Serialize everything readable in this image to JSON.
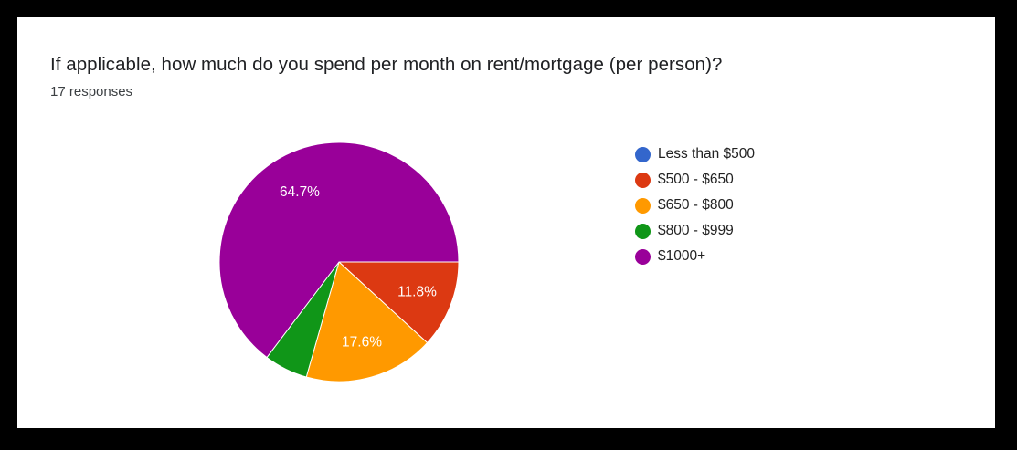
{
  "header": {
    "title": "If applicable, how much do you spend per month on rent/mortgage (per person)?",
    "subtitle": "17 responses"
  },
  "chart_data": {
    "type": "pie",
    "title": "If applicable, how much do you spend per month on rent/mortgage (per person)?",
    "subtitle": "17 responses",
    "categories": [
      "Less than $500",
      "$500 - $650",
      "$650 - $800",
      "$800 - $999",
      "$1000+"
    ],
    "values": [
      0,
      11.8,
      17.6,
      5.9,
      64.7
    ],
    "counts": [
      0,
      2,
      3,
      1,
      11
    ],
    "colors": [
      "#3366cc",
      "#dc3912",
      "#ff9900",
      "#109618",
      "#990099"
    ],
    "slice_labels": [
      "",
      "11.8%",
      "17.6%",
      "",
      "64.7%"
    ],
    "legend_position": "right"
  },
  "legend": {
    "items": [
      {
        "label": "Less than $500",
        "color": "#3366cc"
      },
      {
        "label": "$500 - $650",
        "color": "#dc3912"
      },
      {
        "label": "$650 - $800",
        "color": "#ff9900"
      },
      {
        "label": "$800 - $999",
        "color": "#109618"
      },
      {
        "label": "$1000+",
        "color": "#990099"
      }
    ]
  }
}
